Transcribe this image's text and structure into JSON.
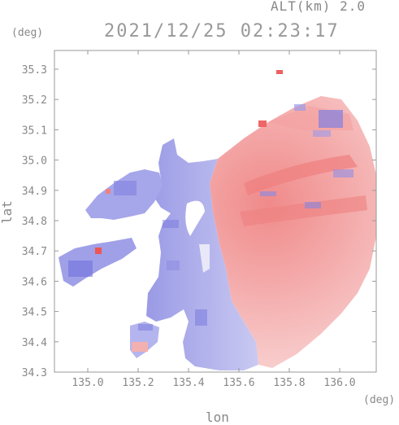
{
  "header": {
    "altitude_label": "ALT(km) 2.0",
    "timestamp": "2021/12/25 02:23:17"
  },
  "axes": {
    "ylabel": "lat",
    "xlabel": "lon",
    "y_unit": "(deg)",
    "x_unit": "(deg)",
    "x_ticks": [
      "135.0",
      "135.2",
      "135.4",
      "135.6",
      "135.8",
      "136.0"
    ],
    "y_ticks": [
      "35.3",
      "35.2",
      "35.1",
      "35.0",
      "34.9",
      "34.8",
      "34.7",
      "34.6",
      "34.5",
      "34.4",
      "34.3"
    ]
  },
  "map": {
    "colors": {
      "toward_radar": "#7a7ae0",
      "away_from_radar": "#f07070",
      "light_blue": "#c8c8f2",
      "light_red": "#f7c4c4",
      "axis": "#999999"
    }
  }
}
